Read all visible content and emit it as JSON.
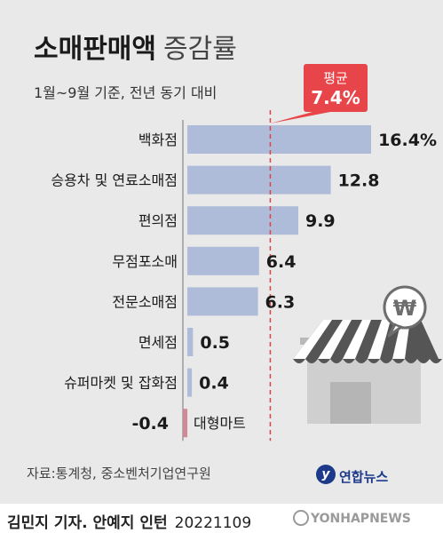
{
  "chart_data": {
    "type": "bar",
    "orientation": "horizontal",
    "title": "소매판매액",
    "title_suffix": "증감률",
    "subtitle": "1월~9월 기준, 전년 동기 대비",
    "categories": [
      "백화점",
      "승용차 및 연료소매점",
      "편의점",
      "무점포소매",
      "전문소매점",
      "면세점",
      "슈퍼마켓 및 잡화점",
      "대형마트"
    ],
    "values": [
      16.4,
      12.8,
      9.9,
      6.4,
      6.3,
      0.5,
      0.4,
      -0.4
    ],
    "value_labels": [
      "16.4%",
      "12.8",
      "9.9",
      "6.4",
      "6.3",
      "0.5",
      "0.4",
      "-0.4"
    ],
    "unit": "%",
    "average": {
      "label": "평균",
      "value": 7.4,
      "value_label": "7.4%"
    },
    "xlim": [
      -0.4,
      16.4
    ],
    "grid": false,
    "colors": {
      "positive": "#aebcd9",
      "negative": "#d08a96",
      "average": "#e04343",
      "callout": "#e8454a"
    }
  },
  "footer": {
    "source": "자료:통계청, 중소벤처기업연구원",
    "logo": "연합뉴스",
    "byline": "김민지 기자. 안예지 인턴",
    "date": "20221109",
    "watermark": "YONHAPNEWS"
  },
  "icons": [
    "store-icon",
    "won-icon",
    "yonhap-logo-icon"
  ]
}
